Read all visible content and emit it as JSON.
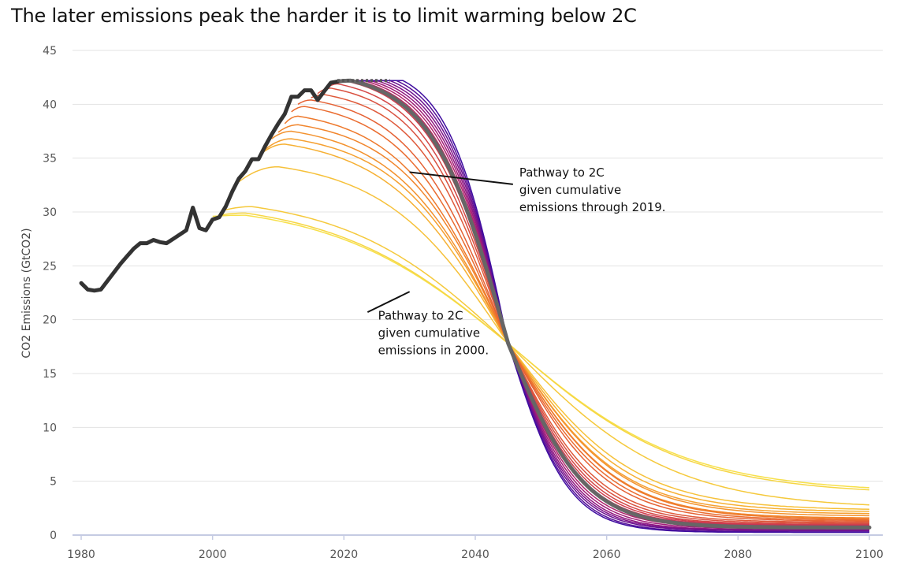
{
  "chart_data": {
    "type": "line",
    "title": "The later emissions peak the harder it is to limit warming below 2C",
    "xlabel": "",
    "ylabel": "CO2 Emissions (GtCO2)",
    "xlim": [
      1980,
      2100
    ],
    "ylim": [
      0,
      45
    ],
    "x_ticks": [
      1980,
      2000,
      2020,
      2040,
      2060,
      2080,
      2100
    ],
    "y_ticks": [
      0,
      5,
      10,
      15,
      20,
      25,
      30,
      35,
      40,
      45
    ],
    "grid": "horizontal",
    "legend": "none",
    "historical": {
      "color": "#333333",
      "x": [
        1980,
        1981,
        1982,
        1983,
        1984,
        1985,
        1986,
        1987,
        1988,
        1989,
        1990,
        1991,
        1992,
        1993,
        1994,
        1995,
        1996,
        1997,
        1998,
        1999,
        2000,
        2001,
        2002,
        2003,
        2004,
        2005,
        2006,
        2007,
        2008,
        2009,
        2010,
        2011,
        2012,
        2013,
        2014,
        2015,
        2016,
        2017,
        2018,
        2019
      ],
      "y": [
        23.4,
        22.8,
        22.7,
        22.8,
        23.6,
        24.4,
        25.2,
        25.9,
        26.6,
        27.1,
        27.1,
        27.4,
        27.2,
        27.1,
        27.5,
        27.9,
        28.3,
        30.4,
        28.5,
        28.3,
        29.3,
        29.5,
        30.5,
        31.9,
        33.1,
        33.8,
        34.9,
        34.9,
        36.1,
        37.2,
        38.2,
        39.1,
        40.7,
        40.7,
        41.3,
        41.3,
        40.4,
        41.2,
        42.0,
        42.1
      ]
    },
    "pathways": [
      {
        "start": 2000,
        "y0": 29.6,
        "peak_year": 2005,
        "peak": 29.7,
        "end_2100": 4.4,
        "color": "#f7e04a",
        "width": 1.5
      },
      {
        "start": 2001,
        "y0": 29.7,
        "peak_year": 2005,
        "peak": 29.9,
        "end_2100": 4.2,
        "color": "#f6d644",
        "width": 1.5
      },
      {
        "start": 2002,
        "y0": 30.2,
        "peak_year": 2006,
        "peak": 30.5,
        "end_2100": 2.8,
        "color": "#f5c93c",
        "width": 1.5
      },
      {
        "start": 2004,
        "y0": 32.8,
        "peak_year": 2010,
        "peak": 34.2,
        "end_2100": 2.4,
        "color": "#f6c13a",
        "width": 1.5
      },
      {
        "start": 2007,
        "y0": 35.2,
        "peak_year": 2011,
        "peak": 36.3,
        "end_2100": 2.2,
        "color": "#f6b033",
        "width": 1.5
      },
      {
        "start": 2008,
        "y0": 35.8,
        "peak_year": 2012,
        "peak": 36.8,
        "end_2100": 2.0,
        "color": "#f5a030",
        "width": 1.5
      },
      {
        "start": 2009,
        "y0": 36.8,
        "peak_year": 2012,
        "peak": 37.5,
        "end_2100": 1.8,
        "color": "#f3922e",
        "width": 1.5
      },
      {
        "start": 2010,
        "y0": 37.4,
        "peak_year": 2013,
        "peak": 38.1,
        "end_2100": 1.6,
        "color": "#f1852c",
        "width": 1.5
      },
      {
        "start": 2011,
        "y0": 38.2,
        "peak_year": 2013,
        "peak": 38.9,
        "end_2100": 1.5,
        "color": "#ee792c",
        "width": 1.5
      },
      {
        "start": 2012,
        "y0": 39.3,
        "peak_year": 2014,
        "peak": 39.8,
        "end_2100": 1.4,
        "color": "#ea6c30",
        "width": 1.5
      },
      {
        "start": 2013,
        "y0": 40.0,
        "peak_year": 2015,
        "peak": 40.4,
        "end_2100": 1.3,
        "color": "#e56235",
        "width": 1.5
      },
      {
        "start": 2015,
        "y0": 40.6,
        "peak_year": 2017,
        "peak": 40.9,
        "end_2100": 1.2,
        "color": "#df5a3b",
        "width": 1.5
      },
      {
        "start": 2016,
        "y0": 41.0,
        "peak_year": 2018,
        "peak": 41.5,
        "end_2100": 1.1,
        "color": "#d95140",
        "width": 1.5
      },
      {
        "start": 2017,
        "y0": 41.3,
        "peak_year": 2019,
        "peak": 41.9,
        "end_2100": 1.0,
        "color": "#d44746",
        "width": 1.5
      },
      {
        "start": 2018,
        "y0": 41.9,
        "peak_year": 2020,
        "peak": 42.2,
        "end_2100": 0.95,
        "color": "#d03e4e",
        "width": 1.5
      },
      {
        "start": 2019,
        "y0": 42.1,
        "peak_year": 2021,
        "peak": 42.2,
        "end_2100": 0.9,
        "color": "#c73556",
        "width": 1.5
      },
      {
        "start": 2019,
        "y0": 42.1,
        "peak_year": 2022,
        "peak": 42.2,
        "end_2100": 0.8,
        "color": "#bd2b61",
        "width": 1.5
      },
      {
        "start": 2019,
        "y0": 42.1,
        "peak_year": 2023,
        "peak": 42.2,
        "end_2100": 0.7,
        "color": "#b0236d",
        "width": 1.5
      },
      {
        "start": 2019,
        "y0": 42.1,
        "peak_year": 2024,
        "peak": 42.2,
        "end_2100": 0.6,
        "color": "#a11c77",
        "width": 1.5
      },
      {
        "start": 2019,
        "y0": 42.1,
        "peak_year": 2025,
        "peak": 42.2,
        "end_2100": 0.5,
        "color": "#901780",
        "width": 1.5
      },
      {
        "start": 2019,
        "y0": 42.1,
        "peak_year": 2026,
        "peak": 42.2,
        "end_2100": 0.45,
        "color": "#7e1489",
        "width": 1.5
      },
      {
        "start": 2019,
        "y0": 42.1,
        "peak_year": 2027,
        "peak": 42.2,
        "end_2100": 0.4,
        "color": "#6b1190",
        "width": 1.5
      },
      {
        "start": 2019,
        "y0": 42.1,
        "peak_year": 2028,
        "peak": 42.2,
        "end_2100": 0.3,
        "color": "#560f98",
        "width": 1.5
      },
      {
        "start": 2019,
        "y0": 42.1,
        "peak_year": 2029,
        "peak": 42.2,
        "end_2100": 0.25,
        "color": "#3f0da0",
        "width": 1.5
      }
    ],
    "highlight_pathway": {
      "start": 2019,
      "y0": 42.1,
      "peak_year": 2021,
      "peak": 42.2,
      "end_2100": 0.7,
      "color": "#666666"
    },
    "dotted_plateau": {
      "x": [
        2019,
        2027
      ],
      "y": 42.2,
      "color": "#555555"
    },
    "crossover": {
      "x": 2045,
      "y": 17.8
    },
    "annotations": [
      {
        "lines": [
          "Pathway to 2C",
          "given cumulative",
          "emissions through 2019."
        ],
        "point_x": 2030,
        "point_y": 33.7,
        "text_x": 2046.7,
        "text_y": 33.3
      },
      {
        "lines": [
          "Pathway to 2C",
          "given cumulative",
          "emissions in 2000."
        ],
        "point_x": 2030,
        "point_y": 22.6,
        "text_x": 2025.2,
        "text_y": 20.0
      }
    ],
    "colors": {
      "grid": "#e3e3e3",
      "axis": "#c5cbe3",
      "tick_text": "#555555"
    }
  }
}
